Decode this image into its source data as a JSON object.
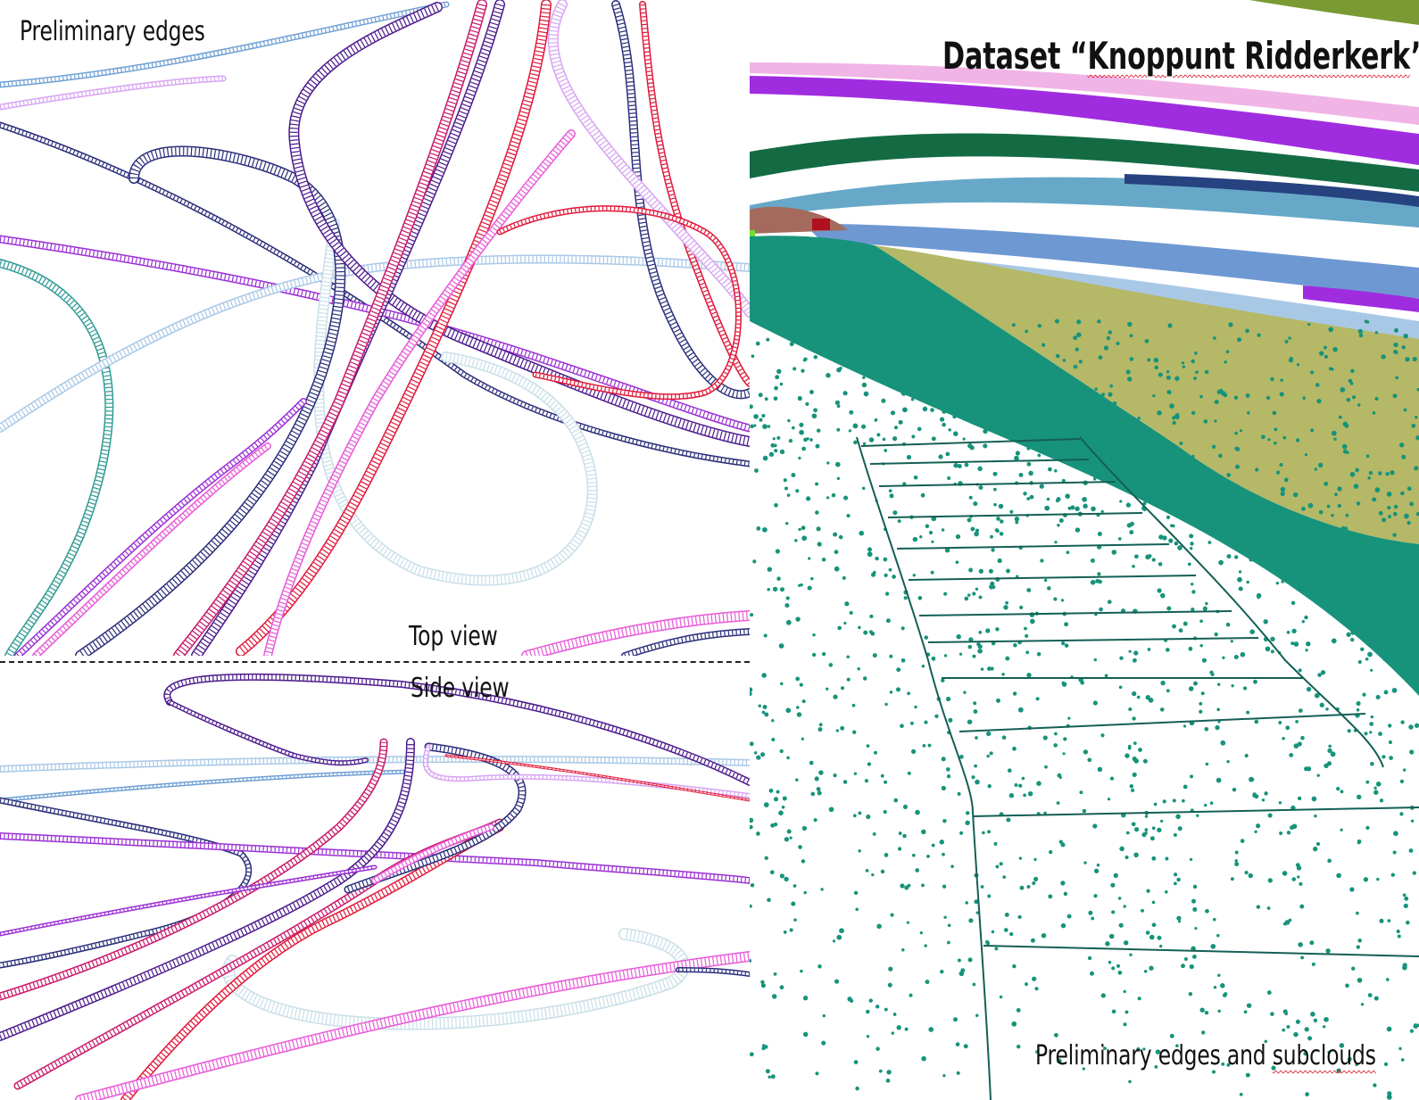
{
  "labels": {
    "top_left": "Preliminary edges",
    "top_view": "Top view",
    "side_view": "Side view",
    "title_prefix": "Dataset “",
    "title_name": "Knoppunt Ridderkerk",
    "title_suffix": "”",
    "bottom_right_prefix": "Preliminary edges and ",
    "bottom_right_word": "subclouds"
  },
  "colors": {
    "purple": "#4b1a8c",
    "navy": "#2b2e7a",
    "magenta": "#c8176a",
    "red": "#e0183a",
    "violet": "#9b2fd4",
    "pink": "#e85ad8",
    "lavender": "#d7a4f2",
    "lightblue": "#a9c8e6",
    "paleblue": "#c9dfe8",
    "steelblue": "#6f9fd4",
    "teal": "#2e9a94",
    "cloud_green": "#17937b",
    "cloud_olive": "#b5b867",
    "cloud_darkgreen": "#146b43",
    "cloud_sky": "#67a8c8",
    "cloud_blue": "#6e98d2",
    "cloud_navy": "#26427f",
    "cloud_purple": "#a02ce0",
    "cloud_pink": "#f0b4e6",
    "cloud_brown": "#a56a5e",
    "cloud_red": "#b01020",
    "cloud_grass": "#7a9a33",
    "cloud_lime": "#6fe028"
  }
}
